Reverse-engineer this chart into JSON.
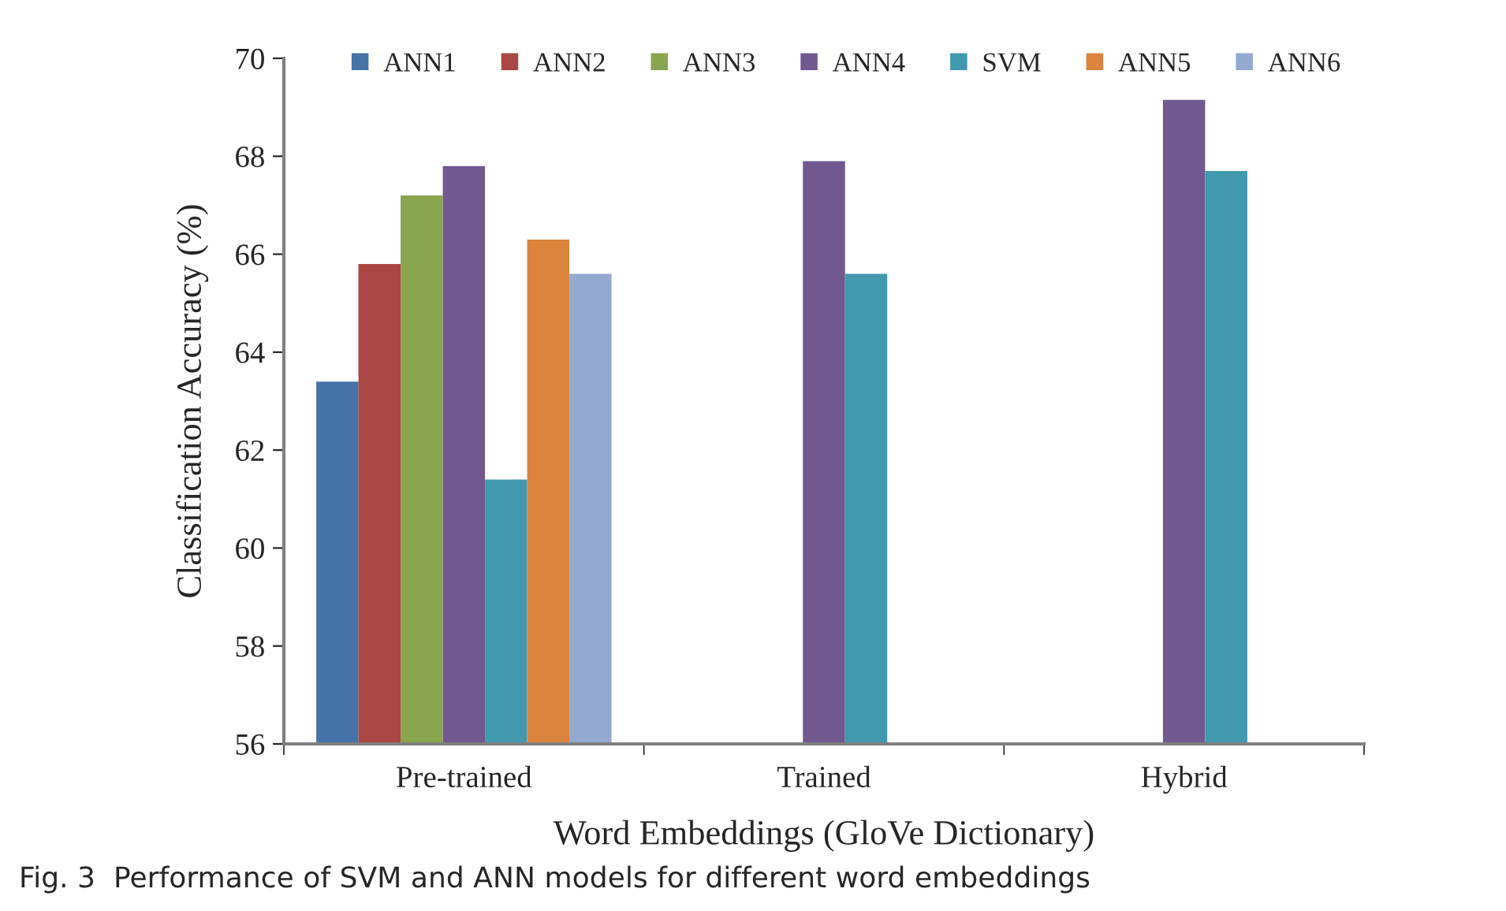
{
  "chart_data": {
    "type": "bar",
    "xlabel": "Word Embeddings (GloVe Dictionary)",
    "ylabel": "Classification Accuracy (%)",
    "categories": [
      "Pre-trained",
      "Trained",
      "Hybrid"
    ],
    "series": [
      {
        "name": "ANN1",
        "color": "#4572a7",
        "values": [
          63.4,
          null,
          null
        ]
      },
      {
        "name": "ANN2",
        "color": "#aa4643",
        "values": [
          65.8,
          null,
          null
        ]
      },
      {
        "name": "ANN3",
        "color": "#89a54e",
        "values": [
          67.2,
          null,
          null
        ]
      },
      {
        "name": "ANN4",
        "color": "#71588f",
        "values": [
          67.8,
          67.9,
          69.15
        ]
      },
      {
        "name": "SVM",
        "color": "#4198af",
        "values": [
          61.4,
          65.6,
          67.7
        ]
      },
      {
        "name": "ANN5",
        "color": "#db843d",
        "values": [
          66.3,
          null,
          null
        ]
      },
      {
        "name": "ANN6",
        "color": "#93a9cf",
        "values": [
          65.6,
          null,
          null
        ]
      }
    ],
    "ylim": [
      56,
      70
    ],
    "yticks": [
      56,
      58,
      60,
      62,
      64,
      66,
      68,
      70
    ],
    "grid": false,
    "legend": "top",
    "annotations": [
      "Fig. 3  Performance of SVM and ANN models for different word embeddings"
    ]
  }
}
